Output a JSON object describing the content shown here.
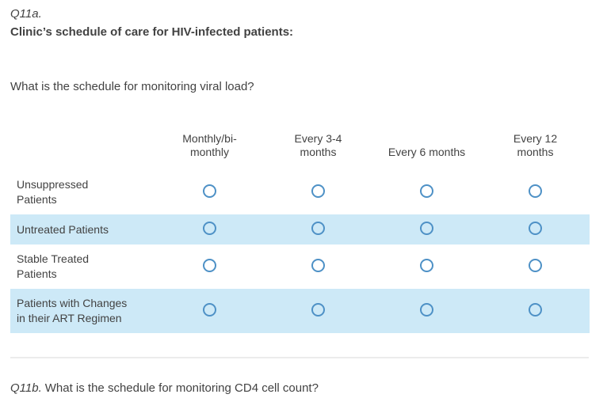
{
  "question_a": {
    "number": "Q11a.",
    "title": "Clinic’s schedule of care for HIV-infected patients:",
    "prompt": "What is the schedule for monitoring viral load?"
  },
  "matrix": {
    "columns": [
      "Monthly/bi-\nmonthly",
      "Every 3-4\nmonths",
      "Every 6 months",
      "Every 12\nmonths"
    ],
    "rows": [
      {
        "label": "Unsuppressed\nPatients",
        "highlighted": false
      },
      {
        "label": "Untreated Patients",
        "highlighted": true
      },
      {
        "label": "Stable Treated\nPatients",
        "highlighted": false
      },
      {
        "label": "Patients with Changes\nin their ART Regimen",
        "highlighted": true
      }
    ],
    "radio_state": "unselected"
  },
  "question_b": {
    "number": "Q11b.",
    "prompt": "What is the schedule for monitoring CD4 cell count?"
  },
  "colors": {
    "row_highlight": "#cde9f7",
    "radio_border": "#4e91c6",
    "text": "#424242",
    "divider": "#ececec",
    "background": "#ffffff"
  }
}
